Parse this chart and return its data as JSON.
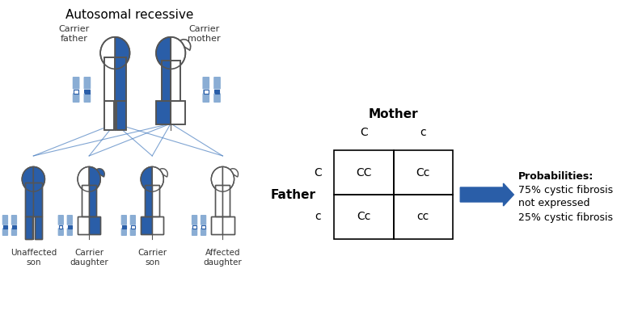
{
  "title": "Autosomal recessive",
  "bg_color": "#ffffff",
  "blue_dark": "#2a5ea8",
  "blue_mid": "#4a7fc0",
  "blue_light": "#8aadd4",
  "blue_very_light": "#b8cce4",
  "line_color": "#4a7fc0",
  "text_color": "#000000",
  "punnett_title": "Mother",
  "punnett_row_label": "Father",
  "punnett_col_labels": [
    "C",
    "c"
  ],
  "punnett_row_labels": [
    "C",
    "c"
  ],
  "punnett_cells": [
    [
      "CC",
      "Cc"
    ],
    [
      "Cc",
      "cc"
    ]
  ],
  "arrow_color": "#2a5ea8",
  "prob_title": "Probabilities:",
  "prob_line1": "75% cystic fibrosis",
  "prob_line2": "not expressed",
  "prob_line3": "25% cystic fibrosis",
  "child_labels": [
    "Unaffected\nson",
    "Carrier\ndaughter",
    "Carrier\nson",
    "Affected\ndaughter"
  ]
}
